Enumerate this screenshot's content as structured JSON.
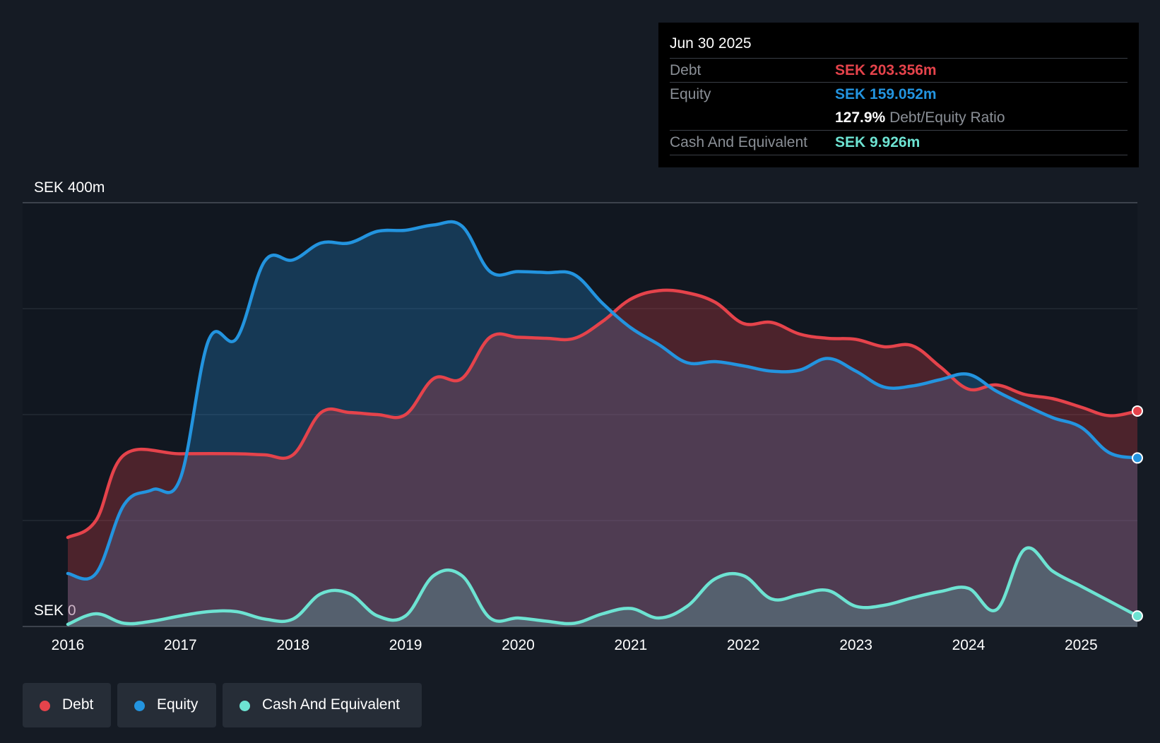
{
  "tooltip": {
    "date": "Jun 30 2025",
    "debt_label": "Debt",
    "debt_value": "SEK 203.356m",
    "equity_label": "Equity",
    "equity_value": "SEK 159.052m",
    "ratio_value": "127.9%",
    "ratio_label": "Debt/Equity Ratio",
    "cash_label": "Cash And Equivalent",
    "cash_value": "SEK 9.926m"
  },
  "legend": {
    "debt": "Debt",
    "equity": "Equity",
    "cash": "Cash And Equivalent"
  },
  "colors": {
    "background": "#151b24",
    "debt": "#e5434b",
    "equity": "#2394df",
    "cash": "#6de3d2"
  },
  "chart_data": {
    "type": "area",
    "ylim": [
      0,
      400
    ],
    "xlim": [
      2016,
      2025.5
    ],
    "y_top_label": "SEK 400m",
    "y_bottom_label": "SEK 0",
    "x_ticks": [
      2016,
      2017,
      2018,
      2019,
      2020,
      2021,
      2022,
      2023,
      2024,
      2025
    ],
    "x_tick_labels": [
      "2016",
      "2017",
      "2018",
      "2019",
      "2020",
      "2021",
      "2022",
      "2023",
      "2024",
      "2025"
    ],
    "grid_y": [
      0,
      100,
      200,
      300,
      400
    ],
    "series": [
      {
        "name": "Debt",
        "key": "debt",
        "points": [
          [
            2016,
            84
          ],
          [
            2016.25,
            100
          ],
          [
            2016.5,
            162
          ],
          [
            2017,
            163
          ],
          [
            2017.5,
            163
          ],
          [
            2017.75,
            162
          ],
          [
            2018,
            162
          ],
          [
            2018.25,
            202
          ],
          [
            2018.5,
            202
          ],
          [
            2018.75,
            200
          ],
          [
            2019,
            200
          ],
          [
            2019.25,
            234
          ],
          [
            2019.5,
            234
          ],
          [
            2019.75,
            273
          ],
          [
            2020,
            273
          ],
          [
            2020.25,
            272
          ],
          [
            2020.5,
            272
          ],
          [
            2020.75,
            288
          ],
          [
            2021,
            309
          ],
          [
            2021.25,
            317
          ],
          [
            2021.5,
            315
          ],
          [
            2021.75,
            306
          ],
          [
            2022,
            286
          ],
          [
            2022.25,
            287
          ],
          [
            2022.5,
            276
          ],
          [
            2022.75,
            272
          ],
          [
            2023,
            271
          ],
          [
            2023.25,
            264
          ],
          [
            2023.5,
            265
          ],
          [
            2023.75,
            245
          ],
          [
            2024,
            224
          ],
          [
            2024.25,
            228
          ],
          [
            2024.5,
            219
          ],
          [
            2024.75,
            215
          ],
          [
            2025,
            207
          ],
          [
            2025.25,
            199
          ],
          [
            2025.5,
            203.356
          ]
        ]
      },
      {
        "name": "Equity",
        "key": "equity",
        "points": [
          [
            2016,
            50
          ],
          [
            2016.25,
            50
          ],
          [
            2016.5,
            115
          ],
          [
            2016.75,
            129
          ],
          [
            2017,
            140
          ],
          [
            2017.25,
            270
          ],
          [
            2017.5,
            272
          ],
          [
            2017.75,
            345
          ],
          [
            2018,
            346
          ],
          [
            2018.25,
            362
          ],
          [
            2018.5,
            362
          ],
          [
            2018.75,
            373
          ],
          [
            2019,
            374
          ],
          [
            2019.25,
            379
          ],
          [
            2019.5,
            378
          ],
          [
            2019.75,
            335
          ],
          [
            2020,
            335
          ],
          [
            2020.25,
            334
          ],
          [
            2020.5,
            332
          ],
          [
            2020.75,
            305
          ],
          [
            2021,
            282
          ],
          [
            2021.25,
            266
          ],
          [
            2021.5,
            249
          ],
          [
            2021.75,
            250
          ],
          [
            2022,
            246
          ],
          [
            2022.25,
            241
          ],
          [
            2022.5,
            242
          ],
          [
            2022.75,
            253
          ],
          [
            2023,
            241
          ],
          [
            2023.25,
            226
          ],
          [
            2023.5,
            227
          ],
          [
            2023.75,
            233
          ],
          [
            2024,
            238
          ],
          [
            2024.25,
            222
          ],
          [
            2024.5,
            209
          ],
          [
            2024.75,
            197
          ],
          [
            2025,
            188
          ],
          [
            2025.25,
            164
          ],
          [
            2025.5,
            159.052
          ]
        ]
      },
      {
        "name": "Cash And Equivalent",
        "key": "cash",
        "points": [
          [
            2016,
            2
          ],
          [
            2016.25,
            12
          ],
          [
            2016.5,
            3
          ],
          [
            2016.75,
            5
          ],
          [
            2017,
            10
          ],
          [
            2017.25,
            14
          ],
          [
            2017.5,
            14
          ],
          [
            2017.75,
            7
          ],
          [
            2018,
            7
          ],
          [
            2018.25,
            31
          ],
          [
            2018.5,
            31
          ],
          [
            2018.75,
            10
          ],
          [
            2019,
            10
          ],
          [
            2019.25,
            48
          ],
          [
            2019.5,
            48
          ],
          [
            2019.75,
            8
          ],
          [
            2020,
            8
          ],
          [
            2020.25,
            5
          ],
          [
            2020.5,
            3
          ],
          [
            2020.75,
            12
          ],
          [
            2021,
            17
          ],
          [
            2021.25,
            8
          ],
          [
            2021.5,
            19
          ],
          [
            2021.75,
            45
          ],
          [
            2022,
            48
          ],
          [
            2022.25,
            26
          ],
          [
            2022.5,
            30
          ],
          [
            2022.75,
            34
          ],
          [
            2023,
            19
          ],
          [
            2023.25,
            20
          ],
          [
            2023.5,
            27
          ],
          [
            2023.75,
            33
          ],
          [
            2024,
            36
          ],
          [
            2024.25,
            16
          ],
          [
            2024.5,
            73
          ],
          [
            2024.75,
            52
          ],
          [
            2025,
            38
          ],
          [
            2025.25,
            24
          ],
          [
            2025.5,
            9.926
          ]
        ]
      }
    ]
  }
}
